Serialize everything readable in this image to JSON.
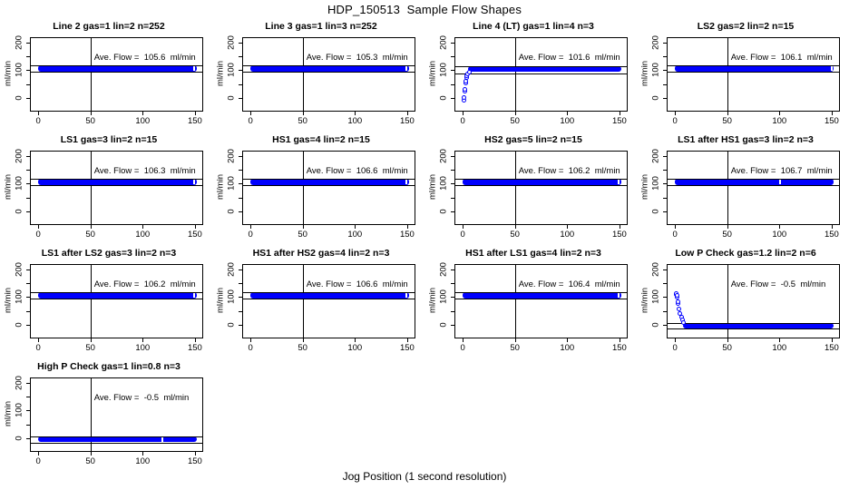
{
  "figure": {
    "title": "HDP_150513  Sample Flow Shapes",
    "x_axis_title": "Jog Position (1 second resolution)",
    "y_axis_label": "ml/min"
  },
  "colors": {
    "point_blue": "#0000ff",
    "axis_black": "#000000",
    "background": "#ffffff"
  },
  "axis": {
    "xlim": [
      -7,
      157
    ],
    "ylim": [
      -45,
      215
    ],
    "x_ticks": [
      0,
      50,
      100,
      150
    ],
    "x_tick_labels": [
      "0",
      "50",
      "100",
      "150"
    ],
    "y_ticks_all": [
      0,
      50,
      100,
      150,
      200
    ],
    "y_ticks_labeled": [
      0,
      100,
      200
    ],
    "y_tick_labels": [
      "0",
      "100",
      "200"
    ],
    "vertical_gridline_x": 50
  },
  "chart_data": [
    {
      "type": "scatter",
      "title": "Line 2 gas=1 lin=2 n=252",
      "gas": "1",
      "lin": "2",
      "n": "252",
      "ave_flow_ml_min": 105.6,
      "annotation": "Ave. Flow =  105.6  ml/min",
      "flat": {
        "x0": 0,
        "x1": 152,
        "level": 106,
        "half": 11
      },
      "ref_lines": [
        117,
        95
      ],
      "gap_x": 148,
      "points": []
    },
    {
      "type": "scatter",
      "title": "Line 3 gas=1 lin=3 n=252",
      "gas": "1",
      "lin": "3",
      "n": "252",
      "ave_flow_ml_min": 105.3,
      "annotation": "Ave. Flow =  105.3  ml/min",
      "flat": {
        "x0": 0,
        "x1": 152,
        "level": 106,
        "half": 11
      },
      "ref_lines": [
        117,
        95
      ],
      "gap_x": 148,
      "points": []
    },
    {
      "type": "scatter",
      "title": "Line 4 (LT) gas=1 lin=4 n=3",
      "gas": "1",
      "lin": "4",
      "n": "3",
      "ave_flow_ml_min": 101.6,
      "annotation": "Ave. Flow =  101.6  ml/min",
      "flat": {
        "x0": 5,
        "x1": 152,
        "level": 104,
        "half": 10
      },
      "ref_lines": [
        114,
        89
      ],
      "gap_x": null,
      "points": [
        [
          1,
          -6
        ],
        [
          1,
          2
        ],
        [
          2,
          26
        ],
        [
          2,
          33
        ],
        [
          3,
          54
        ],
        [
          3,
          61
        ],
        [
          4,
          74
        ],
        [
          4,
          81
        ],
        [
          5,
          87
        ],
        [
          6,
          93
        ]
      ]
    },
    {
      "type": "scatter",
      "title": "LS2 gas=2 lin=2 n=15",
      "gas": "2",
      "lin": "2",
      "n": "15",
      "ave_flow_ml_min": 106.1,
      "annotation": "Ave. Flow =  106.1  ml/min",
      "flat": {
        "x0": 0,
        "x1": 152,
        "level": 106,
        "half": 11
      },
      "ref_lines": [
        117,
        95
      ],
      "gap_x": 149,
      "points": []
    },
    {
      "type": "scatter",
      "title": "LS1 gas=3 lin=2 n=15",
      "gas": "3",
      "lin": "2",
      "n": "15",
      "ave_flow_ml_min": 106.3,
      "annotation": "Ave. Flow =  106.3  ml/min",
      "flat": {
        "x0": 0,
        "x1": 152,
        "level": 106,
        "half": 11
      },
      "ref_lines": [
        117,
        95
      ],
      "gap_x": 148,
      "points": []
    },
    {
      "type": "scatter",
      "title": "HS1 gas=4 lin=2 n=15",
      "gas": "4",
      "lin": "2",
      "n": "15",
      "ave_flow_ml_min": 106.6,
      "annotation": "Ave. Flow =  106.6  ml/min",
      "flat": {
        "x0": 0,
        "x1": 152,
        "level": 106,
        "half": 11
      },
      "ref_lines": [
        117,
        95
      ],
      "gap_x": 148,
      "points": []
    },
    {
      "type": "scatter",
      "title": "HS2 gas=5 lin=2 n=15",
      "gas": "5",
      "lin": "2",
      "n": "15",
      "ave_flow_ml_min": 106.2,
      "annotation": "Ave. Flow =  106.2  ml/min",
      "flat": {
        "x0": 0,
        "x1": 152,
        "level": 106,
        "half": 11
      },
      "ref_lines": [
        117,
        95
      ],
      "gap_x": 148,
      "points": []
    },
    {
      "type": "scatter",
      "title": "LS1 after HS1 gas=3 lin=2 n=3",
      "gas": "3",
      "lin": "2",
      "n": "3",
      "ave_flow_ml_min": 106.7,
      "annotation": "Ave. Flow =  106.7  ml/min",
      "flat": {
        "x0": 0,
        "x1": 152,
        "level": 106,
        "half": 11
      },
      "ref_lines": [
        117,
        95
      ],
      "gap_x": 100,
      "points": []
    },
    {
      "type": "scatter",
      "title": "LS1 after LS2 gas=3 lin=2 n=3",
      "gas": "3",
      "lin": "2",
      "n": "3",
      "ave_flow_ml_min": 106.2,
      "annotation": "Ave. Flow =  106.2  ml/min",
      "flat": {
        "x0": 0,
        "x1": 152,
        "level": 106,
        "half": 11
      },
      "ref_lines": [
        117,
        95
      ],
      "gap_x": 148,
      "points": []
    },
    {
      "type": "scatter",
      "title": "HS1 after HS2 gas=4 lin=2 n=3",
      "gas": "4",
      "lin": "2",
      "n": "3",
      "ave_flow_ml_min": 106.6,
      "annotation": "Ave. Flow =  106.6  ml/min",
      "flat": {
        "x0": 0,
        "x1": 152,
        "level": 106,
        "half": 11
      },
      "ref_lines": [
        117,
        95
      ],
      "gap_x": 148,
      "points": []
    },
    {
      "type": "scatter",
      "title": "HS1 after LS1 gas=4 lin=2 n=3",
      "gas": "4",
      "lin": "2",
      "n": "3",
      "ave_flow_ml_min": 106.4,
      "annotation": "Ave. Flow =  106.4  ml/min",
      "flat": {
        "x0": 0,
        "x1": 152,
        "level": 106,
        "half": 11
      },
      "ref_lines": [
        117,
        95
      ],
      "gap_x": 148,
      "points": []
    },
    {
      "type": "scatter",
      "title": "Low P Check gas=1.2 lin=2 n=6",
      "gas": "1.2",
      "lin": "2",
      "n": "6",
      "ave_flow_ml_min": -0.5,
      "annotation": "Ave. Flow =  -0.5  ml/min",
      "flat": {
        "x0": 8,
        "x1": 152,
        "level": -2,
        "half": 9
      },
      "ref_lines": [
        8,
        -11
      ],
      "gap_x": null,
      "points": [
        [
          1,
          108
        ],
        [
          1,
          113
        ],
        [
          2,
          100
        ],
        [
          2,
          106
        ],
        [
          3,
          78
        ],
        [
          3,
          84
        ],
        [
          4,
          58
        ],
        [
          5,
          42
        ],
        [
          6,
          28
        ],
        [
          7,
          17
        ],
        [
          8,
          9
        ]
      ]
    },
    {
      "type": "scatter",
      "title": "High P Check gas=1 lin=0.8 n=3",
      "gas": "1",
      "lin": "0.8",
      "n": "3",
      "ave_flow_ml_min": -0.5,
      "annotation": "Ave. Flow =  -0.5  ml/min",
      "flat": {
        "x0": 0,
        "x1": 152,
        "level": -3,
        "half": 11
      },
      "ref_lines": [
        8,
        -14
      ],
      "gap_x": 118,
      "points": []
    }
  ]
}
